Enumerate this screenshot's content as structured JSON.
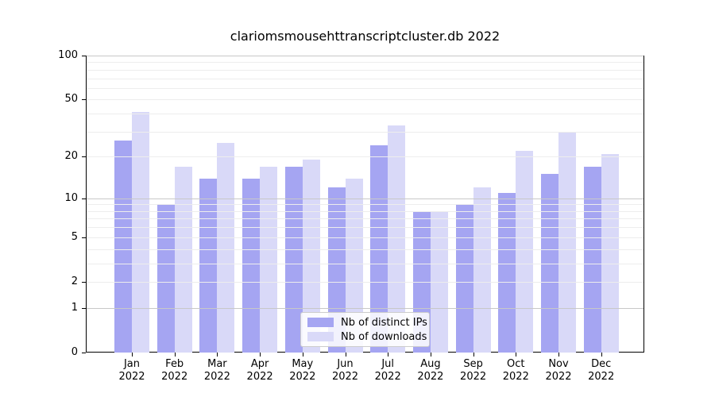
{
  "chart_data": {
    "type": "bar",
    "title": "clariomsmousehttranscriptcluster.db 2022",
    "categories": [
      "Jan",
      "Feb",
      "Mar",
      "Apr",
      "May",
      "Jun",
      "Jul",
      "Aug",
      "Sep",
      "Oct",
      "Nov",
      "Dec"
    ],
    "year": "2022",
    "series": [
      {
        "name": "Nb of distinct IPs",
        "color": "#a5a5f2",
        "values": [
          26,
          9,
          14,
          14,
          17,
          12,
          24,
          8,
          9,
          11,
          15,
          17
        ]
      },
      {
        "name": "Nb of downloads",
        "color": "#d9d9f8",
        "values": [
          41,
          17,
          25,
          17,
          19,
          14,
          33,
          8,
          12,
          22,
          30,
          21
        ]
      }
    ],
    "yscale": "log10(1+x)",
    "ylim": [
      0,
      100
    ],
    "ytick_values": [
      0,
      1,
      2,
      5,
      10,
      20,
      50,
      100
    ],
    "ytick_labels": [
      "0",
      "1",
      "2",
      "5",
      "10",
      "20",
      "50",
      "100"
    ],
    "major_gridlines": [
      1,
      10,
      100
    ],
    "minor_gridlines": [
      2,
      3,
      4,
      5,
      6,
      7,
      8,
      9,
      20,
      30,
      40,
      50,
      60,
      70,
      80,
      90
    ],
    "grid": true,
    "legend_position": "bottom-center",
    "colors": {
      "axis": "#000000",
      "major_grid": "#c8c8c8",
      "minor_grid": "#ededed",
      "background": "#ffffff",
      "legend_border": "#cccccc"
    }
  }
}
